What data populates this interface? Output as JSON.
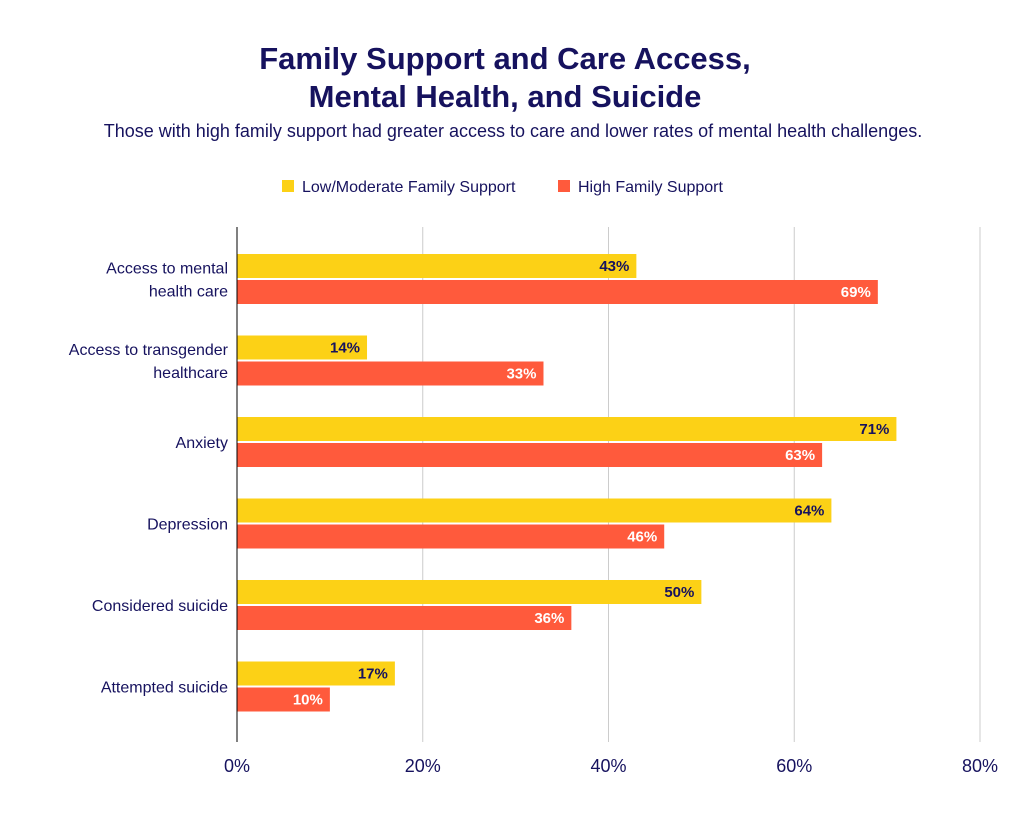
{
  "chart_data": {
    "type": "bar",
    "orientation": "horizontal",
    "title_lines": [
      "Family Support and Care Access,",
      "Mental Health, and Suicide"
    ],
    "subtitle": "Those with high family support had greater access to care and lower rates of mental health challenges.",
    "categories": [
      [
        "Access to mental",
        "health care"
      ],
      [
        "Access to transgender",
        "healthcare"
      ],
      [
        "Anxiety"
      ],
      [
        "Depression"
      ],
      [
        "Considered suicide"
      ],
      [
        "Attempted suicide"
      ]
    ],
    "series": [
      {
        "name": "Low/Moderate Family Support",
        "color": "#fcd116",
        "label_color": "#16125e",
        "values": [
          43,
          14,
          71,
          64,
          50,
          17
        ],
        "labels": [
          "43%",
          "14%",
          "71%",
          "64%",
          "50%",
          "17%"
        ]
      },
      {
        "name": "High Family Support",
        "color": "#ff5a3c",
        "label_color": "#ffffff",
        "values": [
          69,
          33,
          63,
          46,
          36,
          10
        ],
        "labels": [
          "69%",
          "33%",
          "63%",
          "46%",
          "36%",
          "10%"
        ]
      }
    ],
    "x_ticks": [
      0,
      20,
      40,
      60,
      80
    ],
    "x_tick_labels": [
      "0%",
      "20%",
      "40%",
      "60%",
      "80%"
    ],
    "xlim": [
      0,
      80
    ],
    "grid": true,
    "legend_position": "top-center"
  },
  "colors": {
    "text": "#16125e",
    "grid": "#cccccc",
    "axis": "#000000"
  }
}
